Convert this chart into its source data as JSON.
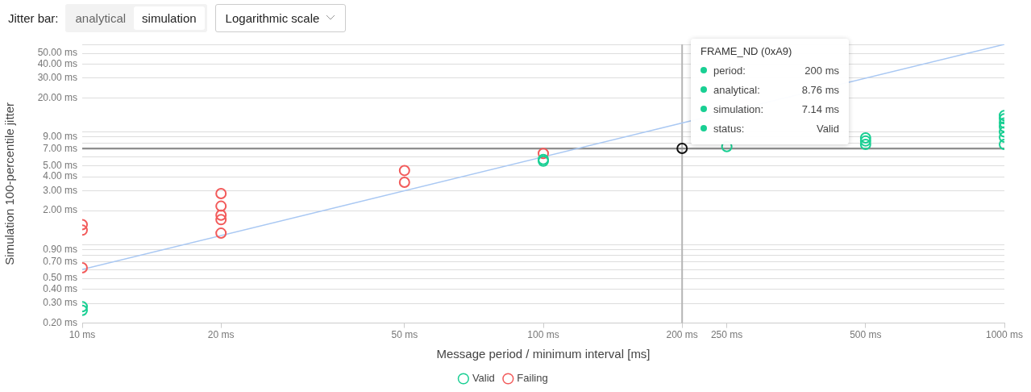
{
  "chart_data": {
    "type": "scatter",
    "xlabel": "Message period / minimum interval [ms]",
    "ylabel": "Simulation 100-percentile jitter",
    "log": "xy",
    "xlim": [
      10,
      1000
    ],
    "xticks": [
      {
        "value": 10,
        "label": "10 ms"
      },
      {
        "value": 20,
        "label": "20 ms"
      },
      {
        "value": 50,
        "label": "50 ms"
      },
      {
        "value": 100,
        "label": "100 ms"
      },
      {
        "value": 200,
        "label": "200 ms"
      },
      {
        "value": 250,
        "label": "250 ms"
      },
      {
        "value": 500,
        "label": "500 ms"
      },
      {
        "value": 1000,
        "label": "1000 ms"
      }
    ],
    "ylim": [
      0.2,
      60
    ],
    "yticks": [
      {
        "value": 0.2,
        "label": "0.20 ms"
      },
      {
        "value": 0.3,
        "label": "0.30 ms"
      },
      {
        "value": 0.4,
        "label": "0.40 ms"
      },
      {
        "value": 0.5,
        "label": "0.50 ms"
      },
      {
        "value": 0.6,
        "label": null
      },
      {
        "value": 0.7,
        "label": "0.70 ms"
      },
      {
        "value": 0.8,
        "label": null
      },
      {
        "value": 0.9,
        "label": "0.90 ms"
      },
      {
        "value": 1,
        "label": null
      },
      {
        "value": 2,
        "label": "2.00 ms"
      },
      {
        "value": 3,
        "label": "3.00 ms"
      },
      {
        "value": 4,
        "label": "4.00 ms"
      },
      {
        "value": 5,
        "label": "5.00 ms"
      },
      {
        "value": 6,
        "label": null
      },
      {
        "value": 7,
        "label": "7.00 ms"
      },
      {
        "value": 8,
        "label": null
      },
      {
        "value": 9,
        "label": "9.00 ms"
      },
      {
        "value": 10,
        "label": null
      },
      {
        "value": 20,
        "label": "20.00 ms"
      },
      {
        "value": 30,
        "label": "30.00 ms"
      },
      {
        "value": 40,
        "label": "40.00 ms"
      },
      {
        "value": 50,
        "label": "50.00 ms"
      },
      {
        "value": 60,
        "label": null
      }
    ],
    "grid": "y",
    "legend": "bottom",
    "marker": "circle",
    "series": [
      {
        "type": "line",
        "marker": "none",
        "color": "#a9c8f3",
        "x": [
          10,
          1000
        ],
        "values": [
          0.6,
          60
        ]
      },
      {
        "name": "Valid",
        "color": "#19cf93",
        "x": [
          10,
          10,
          100,
          100,
          250,
          500,
          500,
          500,
          1000,
          1000,
          1000,
          1000,
          1000,
          1000,
          1000
        ],
        "values": [
          0.28,
          0.26,
          5.7,
          5.5,
          7.4,
          8.85,
          8.3,
          7.75,
          14.0,
          13.1,
          12.0,
          11.1,
          10.0,
          9.0,
          7.75
        ]
      },
      {
        "name": "Failing",
        "color": "#f25a5a",
        "x": [
          10,
          10,
          10,
          20,
          20,
          20,
          20,
          20,
          50,
          50,
          100
        ],
        "values": [
          1.5,
          1.34,
          0.62,
          2.83,
          2.19,
          1.82,
          1.66,
          1.26,
          4.54,
          3.57,
          6.43
        ]
      },
      {
        "color": "#111111",
        "x": [
          200
        ],
        "values": [
          7.14
        ]
      }
    ],
    "ref_lines": [
      {
        "axis": "x",
        "value": 200,
        "color": "#b5b5b5"
      },
      {
        "axis": "y",
        "value": 7.14,
        "color": "#8f8f8f"
      }
    ],
    "annotations": [
      "Jitter bar:",
      "analytical",
      "simulation",
      "Logarithmic scale",
      "FRAME_ND (0xA9)",
      "period:",
      "200 ms",
      "analytical:",
      "8.76 ms",
      "simulation:",
      "7.14 ms",
      "status:",
      "Valid"
    ]
  }
}
